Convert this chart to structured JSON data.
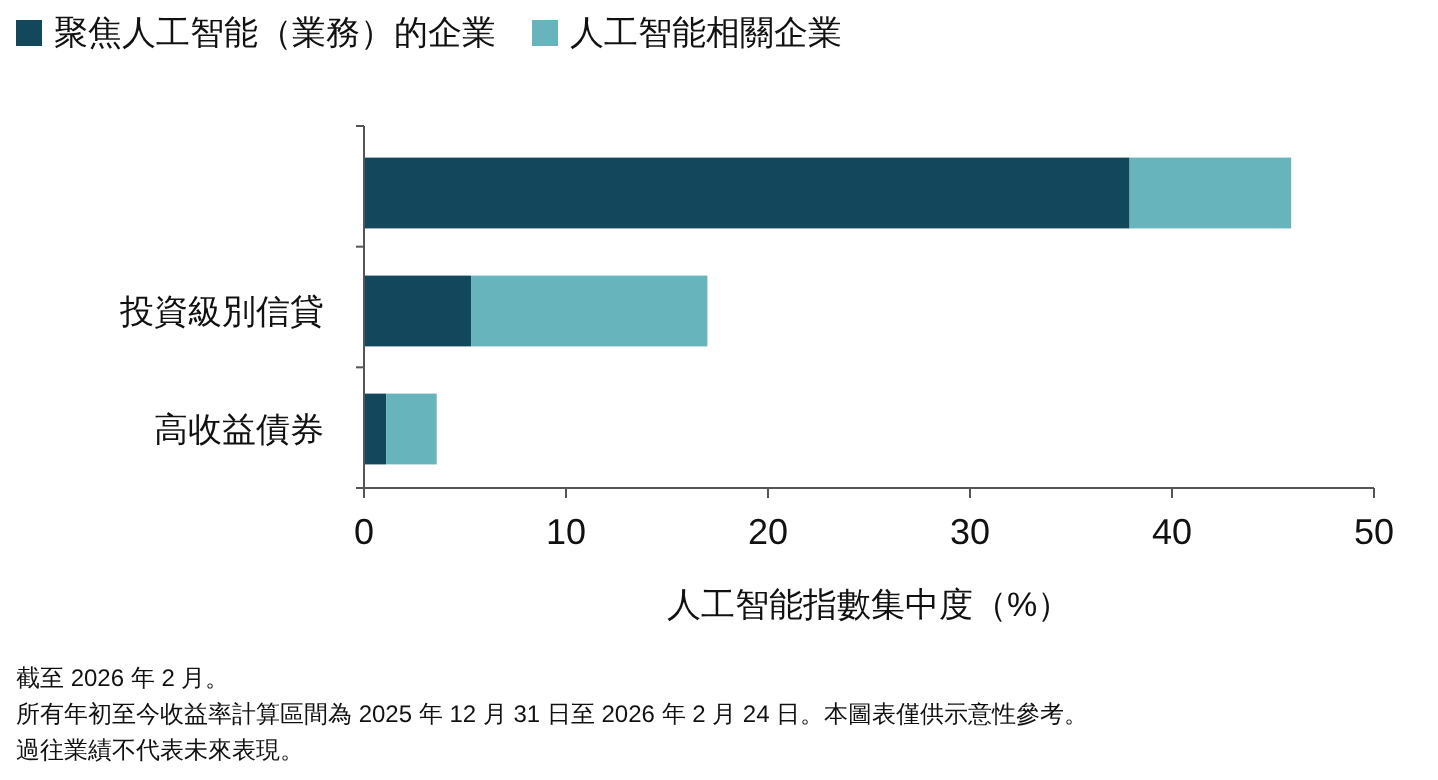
{
  "chart_data": {
    "type": "bar",
    "orientation": "horizontal",
    "stacked": true,
    "xlabel": "人工智能指數集中度（%）",
    "categories": [
      null,
      "投資級別信貸",
      "高收益債券"
    ],
    "series": [
      {
        "name": "聚焦人工智能（業務）的企業",
        "color": "#12475c",
        "values": [
          37.9,
          5.3,
          1.1
        ]
      },
      {
        "name": "人工智能相關企業",
        "color": "#67b4bd",
        "values": [
          8.0,
          11.7,
          2.5
        ]
      }
    ],
    "xlim": [
      0,
      50
    ],
    "xticks": [
      0,
      10,
      20,
      30,
      40,
      50
    ],
    "grid": false,
    "legend": "top left",
    "annotations": [
      "截至 2026 年 2 月。",
      "所有年初至今收益率計算區間為 2025 年 12 月 31 日至 2026 年 2 月 24 日。本圖表僅供示意性參考。",
      "過往業績不代表未來表現。"
    ]
  }
}
